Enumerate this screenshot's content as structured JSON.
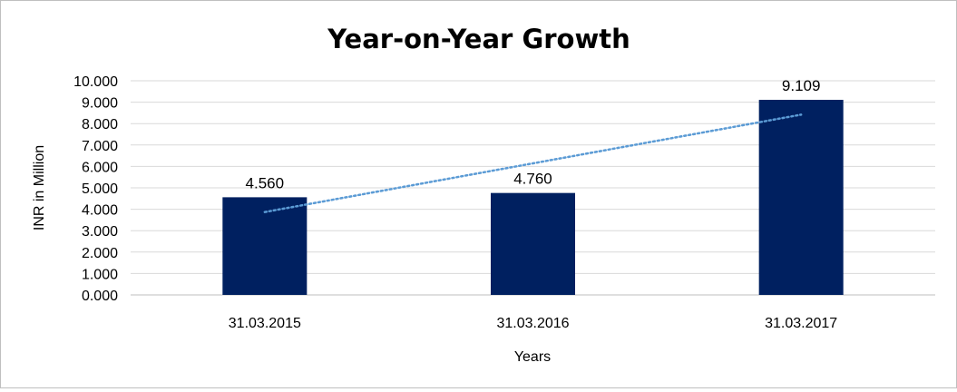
{
  "chart_data": {
    "type": "bar",
    "title": "Year-on-Year Growth",
    "xlabel": "Years",
    "ylabel": "INR in Million",
    "categories": [
      "31.03.2015",
      "31.03.2016",
      "31.03.2017"
    ],
    "values": [
      4.56,
      4.76,
      9.109
    ],
    "value_labels": [
      "4.560",
      "4.760",
      "9.109"
    ],
    "ylim": [
      0,
      10
    ],
    "y_ticks": [
      0,
      1,
      2,
      3,
      4,
      5,
      6,
      7,
      8,
      9,
      10
    ],
    "y_tick_labels": [
      "0.000",
      "1.000",
      "2.000",
      "3.000",
      "4.000",
      "5.000",
      "6.000",
      "7.000",
      "8.000",
      "9.000",
      "10.000"
    ],
    "grid": true,
    "legend": "none",
    "trendline": "linear",
    "colors": {
      "bar": "#002060",
      "trendline": "#5b9bd5",
      "grid": "#d9d9d9"
    }
  }
}
